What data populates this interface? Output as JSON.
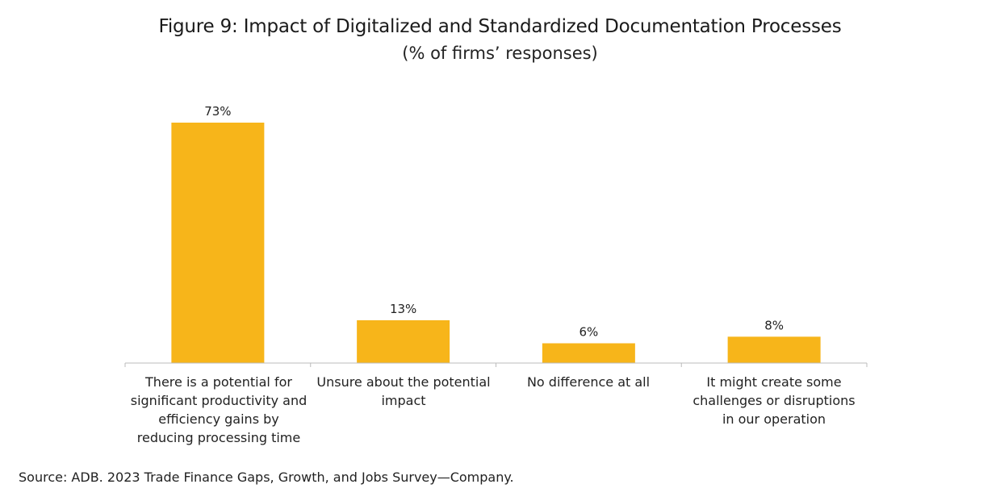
{
  "chart_data": {
    "type": "bar",
    "title": "Figure 9: Impact of Digitalized and Standardized Documentation Processes",
    "subtitle": "(% of firms’ responses)",
    "categories": [
      "There is a potential for significant productivity and efficiency gains by reducing processing time",
      "Unsure about the potential impact",
      "No difference at all",
      "It might create some challenges or disruptions in our operation"
    ],
    "values": [
      73,
      13,
      6,
      8
    ],
    "data_labels": [
      "73%",
      "13%",
      "6%",
      "8%"
    ],
    "unit": "%",
    "ylim": [
      0,
      73
    ],
    "grid": false,
    "legend": "none",
    "bar_color": "#F7B51A",
    "axis_color": "#BBBBBB"
  },
  "source": "Source: ADB. 2023 Trade Finance Gaps, Growth, and Jobs Survey—Company."
}
